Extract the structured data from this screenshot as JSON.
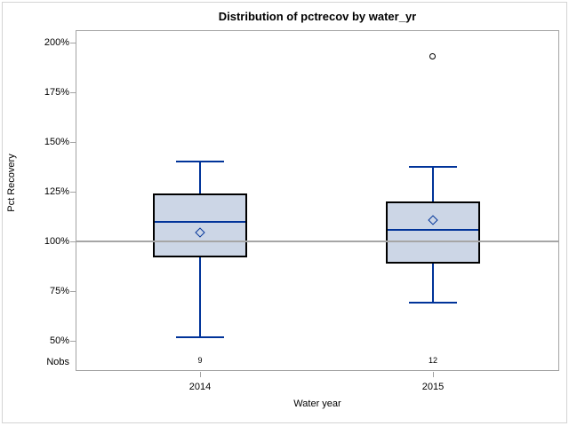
{
  "chart_data": {
    "type": "boxplot",
    "title": "Distribution of pctrecov by water_yr",
    "xlabel": "Water year",
    "ylabel": "Pct Recovery",
    "nobs_label": "Nobs",
    "y_axis": {
      "unit": "%",
      "range": [
        50,
        200
      ],
      "ticks": [
        {
          "label": "200%",
          "value": 200
        },
        {
          "label": "175%",
          "value": 175
        },
        {
          "label": "150%",
          "value": 150
        },
        {
          "label": "125%",
          "value": 125
        },
        {
          "label": "100%",
          "value": 100
        },
        {
          "label": "75%",
          "value": 75
        },
        {
          "label": "50%",
          "value": 50
        }
      ],
      "grid": false
    },
    "refline_value": 100,
    "categories": [
      "2014",
      "2015"
    ],
    "groups": [
      {
        "category": "2014",
        "nobs": "9",
        "whisker_low": 52,
        "q1": 92,
        "median": 110,
        "mean": 104.5,
        "q3": 124,
        "whisker_high": 140,
        "outliers": []
      },
      {
        "category": "2015",
        "nobs": "12",
        "whisker_low": 69,
        "q1": 89,
        "median": 106,
        "mean": 110.5,
        "q3": 120,
        "whisker_high": 137.5,
        "outliers": [
          193
        ]
      }
    ],
    "colors": {
      "box_fill": "#ccd6e6",
      "box_border": "#000000",
      "box_lines": "#003399",
      "refline": "#a6a6a6",
      "axis": "#a3a3a3",
      "outer_border": "#d4d4d4",
      "outlier": "#000000"
    },
    "legend": "none"
  }
}
